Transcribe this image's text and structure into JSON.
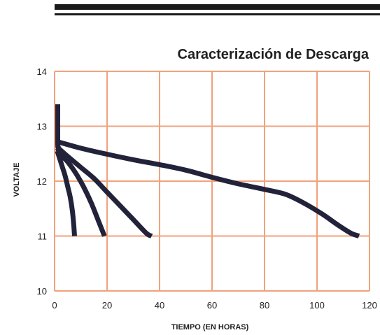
{
  "brand": {
    "text": "",
    "accent": ""
  },
  "chart_data": {
    "type": "line",
    "title": "Caracterización de Descarga",
    "xlabel": "TIEMPO (EN HORAS)",
    "ylabel": "VOLTAJE",
    "xlim": [
      0,
      120
    ],
    "ylim": [
      10,
      14
    ],
    "x_ticks": [
      0,
      20,
      40,
      60,
      80,
      100,
      120
    ],
    "y_ticks": [
      10,
      11,
      12,
      13,
      14
    ],
    "grid": true,
    "colors": {
      "grid": "#f0a27c",
      "line": "#22223a",
      "text": "#1f1f1f"
    },
    "series": [
      {
        "x": [
          1.2,
          1.2,
          1.4,
          2.0
        ],
        "y": [
          13.4,
          12.7,
          12.62,
          12.55
        ]
      },
      {
        "x": [
          1,
          2,
          3,
          4,
          5,
          6,
          6.8,
          7.3,
          7.6
        ],
        "y": [
          12.55,
          12.4,
          12.25,
          12.1,
          11.9,
          11.7,
          11.45,
          11.2,
          11.0
        ]
      },
      {
        "x": [
          1,
          3,
          5,
          8,
          11,
          14,
          16.5,
          19
        ],
        "y": [
          12.6,
          12.45,
          12.35,
          12.15,
          11.9,
          11.6,
          11.3,
          11.0
        ]
      },
      {
        "x": [
          1,
          5,
          10,
          15,
          20,
          25,
          30,
          35,
          37
        ],
        "y": [
          12.62,
          12.45,
          12.25,
          12.05,
          11.8,
          11.55,
          11.3,
          11.05,
          11.0
        ]
      },
      {
        "x": [
          1,
          10,
          20,
          30,
          40,
          50,
          60,
          70,
          80,
          88,
          95,
          102,
          108,
          113,
          116
        ],
        "y": [
          12.72,
          12.6,
          12.49,
          12.39,
          12.3,
          12.2,
          12.07,
          11.95,
          11.85,
          11.76,
          11.6,
          11.4,
          11.2,
          11.05,
          11.0
        ]
      }
    ]
  }
}
